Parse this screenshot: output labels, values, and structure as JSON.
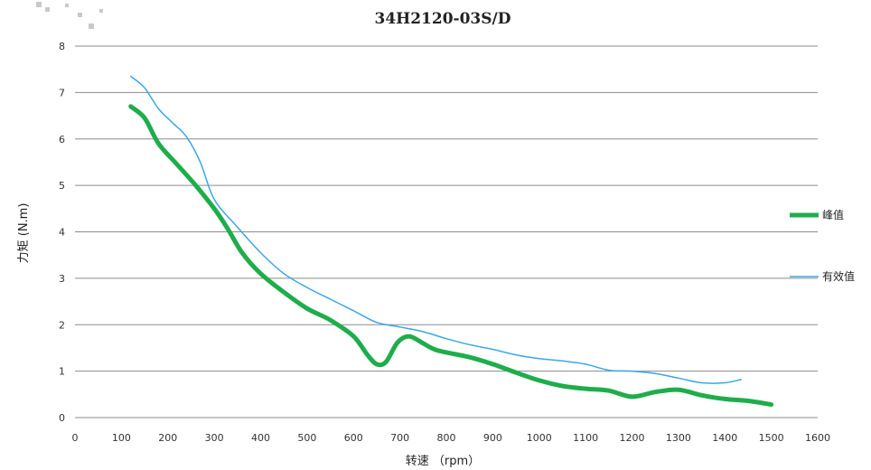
{
  "chart_data": {
    "type": "line",
    "title": "34H2120-03S/D",
    "xlabel": "转速 （rpm）",
    "ylabel": "力矩 (N.m)",
    "xlim": [
      0,
      1600
    ],
    "ylim": [
      0,
      8
    ],
    "x_ticks": [
      "0",
      "100",
      "200",
      "300",
      "400",
      "500",
      "600",
      "700",
      "800",
      "900",
      "1000",
      "1100",
      "1200",
      "1300",
      "1400",
      "1500",
      "1600"
    ],
    "y_ticks": [
      "0",
      "1",
      "2",
      "3",
      "4",
      "5",
      "6",
      "7",
      "8"
    ],
    "grid": "horizontal",
    "legend_position": "right",
    "series": [
      {
        "name": "峰值",
        "color": "#1fad4c",
        "points": [
          [
            120,
            6.7
          ],
          [
            150,
            6.45
          ],
          [
            180,
            5.9
          ],
          [
            220,
            5.45
          ],
          [
            260,
            5.0
          ],
          [
            300,
            4.5
          ],
          [
            330,
            4.05
          ],
          [
            360,
            3.55
          ],
          [
            400,
            3.1
          ],
          [
            450,
            2.7
          ],
          [
            500,
            2.35
          ],
          [
            550,
            2.1
          ],
          [
            600,
            1.75
          ],
          [
            630,
            1.35
          ],
          [
            650,
            1.15
          ],
          [
            670,
            1.2
          ],
          [
            695,
            1.62
          ],
          [
            720,
            1.75
          ],
          [
            750,
            1.6
          ],
          [
            780,
            1.45
          ],
          [
            850,
            1.3
          ],
          [
            900,
            1.15
          ],
          [
            950,
            0.97
          ],
          [
            1000,
            0.8
          ],
          [
            1050,
            0.68
          ],
          [
            1100,
            0.62
          ],
          [
            1150,
            0.58
          ],
          [
            1200,
            0.45
          ],
          [
            1250,
            0.55
          ],
          [
            1300,
            0.6
          ],
          [
            1350,
            0.48
          ],
          [
            1400,
            0.4
          ],
          [
            1450,
            0.36
          ],
          [
            1500,
            0.28
          ]
        ]
      },
      {
        "name": "有效值",
        "color": "#3aa7e8",
        "points": [
          [
            120,
            7.35
          ],
          [
            150,
            7.1
          ],
          [
            180,
            6.65
          ],
          [
            210,
            6.35
          ],
          [
            240,
            6.05
          ],
          [
            270,
            5.5
          ],
          [
            300,
            4.7
          ],
          [
            350,
            4.1
          ],
          [
            400,
            3.55
          ],
          [
            450,
            3.1
          ],
          [
            500,
            2.8
          ],
          [
            550,
            2.55
          ],
          [
            600,
            2.3
          ],
          [
            650,
            2.05
          ],
          [
            700,
            1.95
          ],
          [
            750,
            1.85
          ],
          [
            800,
            1.7
          ],
          [
            850,
            1.57
          ],
          [
            900,
            1.47
          ],
          [
            950,
            1.35
          ],
          [
            1000,
            1.27
          ],
          [
            1050,
            1.22
          ],
          [
            1100,
            1.15
          ],
          [
            1150,
            1.02
          ],
          [
            1200,
            1.0
          ],
          [
            1250,
            0.95
          ],
          [
            1300,
            0.85
          ],
          [
            1350,
            0.75
          ],
          [
            1400,
            0.75
          ],
          [
            1435,
            0.82
          ]
        ]
      }
    ]
  }
}
